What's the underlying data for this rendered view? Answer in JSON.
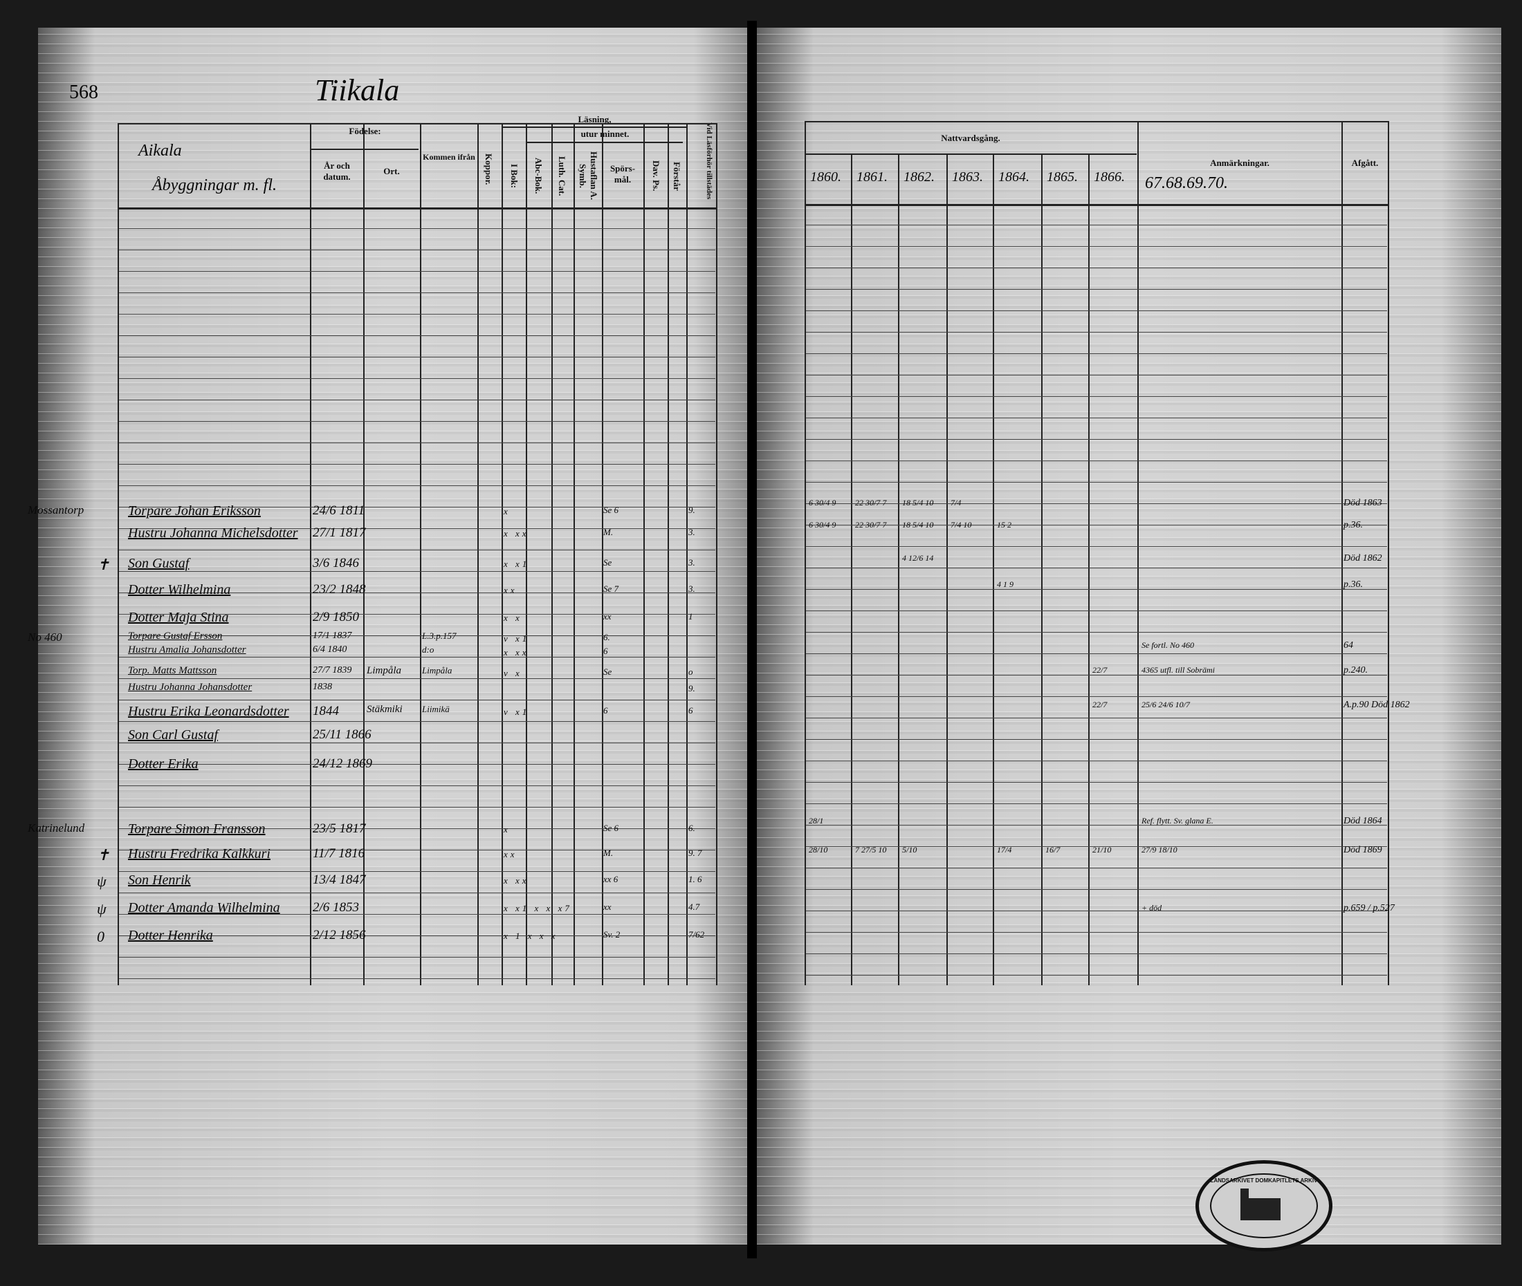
{
  "left_page": {
    "page_number": "568",
    "village": "Tiikala",
    "first_col_heading": [
      "Aikala",
      "Åbyggningar m. fl."
    ],
    "headers": {
      "fodelse": "Födelse:",
      "ar": "År och datum.",
      "ort": "Ort.",
      "kommen": "Kommen ifrån",
      "koppor": "Koppor.",
      "lasning": "Läsning,",
      "utur": "utur minnet.",
      "ibok": "I Bok:",
      "abc": "Abc-Bok.",
      "luth": "Luth. Cat.",
      "husfl": "Hustaflan A. Symb.",
      "spors": "Spörs-mål.",
      "dav": "Dav. Ps.",
      "forstar": "Förstår",
      "vid": "Vid Läsförhör tillstädes"
    },
    "entries": [
      {
        "margin": "Mossantorp",
        "name": "Torpare Johan Eriksson",
        "date": "24/6 1811",
        "marks": "x",
        "spors": "Se 6",
        "forstar": "9."
      },
      {
        "margin": "",
        "name": "Hustru Johanna Michelsdotter",
        "date": "27/1 1817",
        "marks": "x xx",
        "spors": "M.",
        "forstar": "3."
      },
      {
        "margin": "✝",
        "name": "Son Gustaf",
        "date": "3/6 1846",
        "marks": "x x1",
        "spors": "Se",
        "forstar": "3."
      },
      {
        "margin": "",
        "name": "Dotter Wilhelmina",
        "date": "23/2 1848",
        "marks": "xx",
        "spors": "Se 7",
        "forstar": "3."
      },
      {
        "margin": "",
        "name": "Dotter Maja Stina",
        "date": "2/9 1850",
        "marks": "x x",
        "spors": "xx",
        "forstar": "1"
      },
      {
        "margin": "No 460",
        "name": "Torpare Gustaf Ersson",
        "date": "17/1 1837",
        "kommen": "L.3.p.157",
        "marks": "v x1",
        "spors": "6.",
        "forstar": ""
      },
      {
        "margin": "",
        "name": "Hustru Amalia Johansdotter",
        "date": "6/4 1840",
        "kommen": "d:o",
        "marks": "x xx",
        "spors": "6",
        "forstar": ""
      },
      {
        "margin": "",
        "name": "Torp. Matts Mattsson",
        "date": "27/7 1839",
        "ort": "Limpåla",
        "kommen": "Limpåla",
        "marks": "v x",
        "spors": "Se",
        "forstar": "o"
      },
      {
        "margin": "",
        "name": "Hustru Johanna Johansdotter",
        "date": "1838",
        "marks": "",
        "spors": "",
        "forstar": "9."
      },
      {
        "margin": "",
        "name": "Hustru Erika Leonardsdotter",
        "date": "1844",
        "ort": "Stäkmiki",
        "kommen": "Liimikä",
        "marks": "v x1",
        "spors": "6",
        "forstar": "6"
      },
      {
        "margin": "",
        "name": "Son Carl Gustaf",
        "date": "25/11 1866",
        "marks": "",
        "spors": "",
        "forstar": ""
      },
      {
        "margin": "",
        "name": "Dotter Erika",
        "date": "24/12 1869",
        "marks": "",
        "spors": "",
        "forstar": ""
      },
      {
        "margin": "Katrinelund",
        "name": "Torpare Simon Fransson",
        "date": "23/5 1817",
        "marks": "x",
        "spors": "Se 6",
        "forstar": "6."
      },
      {
        "margin": "✝",
        "name": "Hustru Fredrika Kalkkuri",
        "date": "11/7 1816",
        "marks": "xx",
        "spors": "M.",
        "forstar": "9. 7"
      },
      {
        "margin": "ψ",
        "name": "Son Henrik",
        "date": "13/4 1847",
        "marks": "x xx",
        "spors": "xx 6",
        "forstar": "1. 6"
      },
      {
        "margin": "ψ",
        "name": "Dotter Amanda Wilhelmina",
        "date": "2/6 1853",
        "marks": "x x1 x x x7",
        "spors": "xx",
        "forstar": "4.7"
      },
      {
        "margin": "0",
        "name": "Dotter Henrika",
        "date": "2/12 1856",
        "marks": "x 1 x x x",
        "spors": "Sv. 2",
        "forstar": "7/62"
      }
    ]
  },
  "right_page": {
    "headers": {
      "nattvard": "Nattvardsgång.",
      "years": [
        "1860.",
        "1861.",
        "1862.",
        "1863.",
        "1864.",
        "1865.",
        "1866."
      ],
      "anm": "Anmärkningar.",
      "anm_years": "67.68.69.70.",
      "afgatt": "Afgått."
    },
    "entries": [
      {
        "nv": [
          "6 30/4 9",
          "22 30/7 7",
          "18 5/4 10",
          "7/4",
          "",
          "",
          ""
        ],
        "anm": "",
        "afgatt": "Död 1863"
      },
      {
        "nv": [
          "6 30/4 9",
          "22 30/7 7",
          "18 5/4 10",
          "7/4 10",
          "15 2",
          "",
          ""
        ],
        "anm": "",
        "afgatt": "p.36."
      },
      {
        "nv": [
          "",
          "",
          "4 12/6 14",
          "",
          "",
          "",
          ""
        ],
        "anm": "",
        "afgatt": "Död 1862"
      },
      {
        "nv": [
          "",
          "",
          "",
          "",
          "4 1 9",
          "",
          ""
        ],
        "anm": "",
        "afgatt": "p.36."
      },
      {
        "nv": [
          "",
          "",
          "",
          "",
          "",
          "",
          ""
        ],
        "anm": "Se fortl. No 460",
        "afgatt": "64"
      },
      {
        "nv": [
          "",
          "",
          "",
          "",
          "",
          "",
          "22/7"
        ],
        "anm": "4365 utfl. till Sobrämi",
        "afgatt": "p.240."
      },
      {
        "nv": [
          "",
          "",
          "",
          "",
          "",
          "",
          "22/7"
        ],
        "anm": "25/6 24/6 10/7",
        "afgatt": "A.p.90 Död 1862"
      },
      {
        "nv": [
          "28/1",
          "",
          "",
          "",
          "",
          "",
          ""
        ],
        "anm": "Ref. flytt. Sv. glana E.",
        "afgatt": "Död 1864"
      },
      {
        "nv": [
          "28/10",
          "7 27/5 10",
          "5/10",
          "",
          "17/4",
          "16/7",
          "21/10"
        ],
        "anm": "27/9 18/10",
        "afgatt": "Död 1869"
      },
      {
        "nv": [
          "",
          "",
          "",
          "",
          "",
          "",
          ""
        ],
        "anm": "+ död",
        "afgatt": "p.659 / p.527"
      }
    ]
  },
  "stamp": {
    "text": "LANDSARKIVET DOMKAPITLETS ARKIV"
  },
  "colors": {
    "paper": "#d0d0d0",
    "ink": "#0a0a0a",
    "background": "#1a1a1a"
  }
}
